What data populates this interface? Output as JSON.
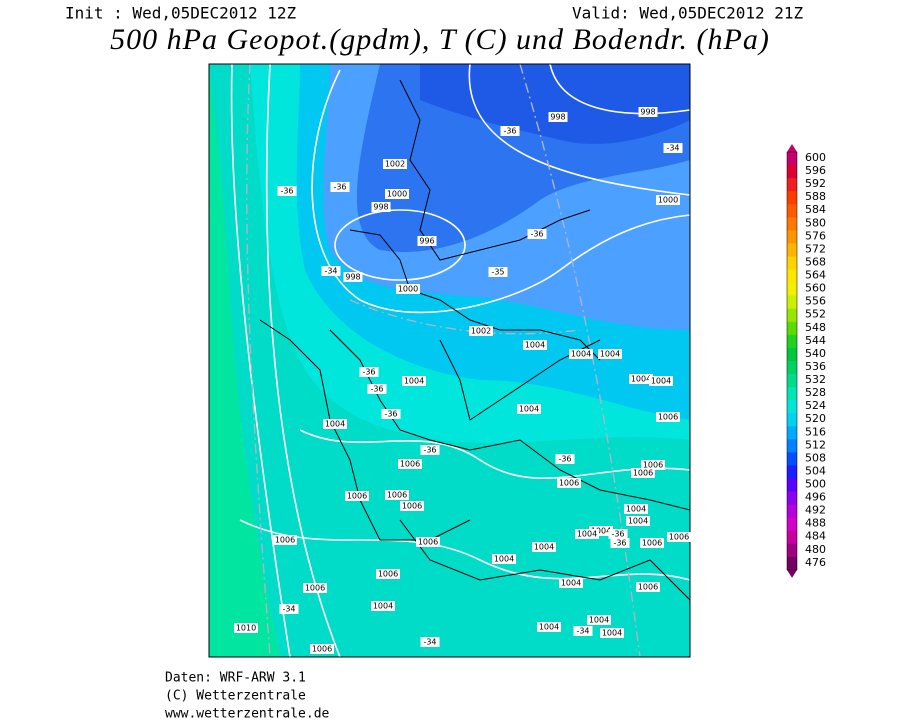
{
  "header": {
    "init": "Init : Wed,05DEC2012 12Z",
    "valid": "Valid: Wed,05DEC2012 21Z",
    "title": "500 hPa Geopot.(gpdm), T (C) und Bodendr. (hPa)"
  },
  "colorbar": {
    "labels": [
      600,
      596,
      592,
      588,
      584,
      580,
      576,
      572,
      568,
      564,
      560,
      556,
      552,
      548,
      544,
      540,
      536,
      532,
      528,
      524,
      520,
      516,
      512,
      508,
      504,
      500,
      496,
      492,
      488,
      484,
      480,
      476
    ],
    "colors": [
      "#c8006e",
      "#dc0032",
      "#f01e1e",
      "#ff3c00",
      "#ff5a00",
      "#ff7800",
      "#ff9600",
      "#ffb400",
      "#ffd200",
      "#ffe600",
      "#f0f000",
      "#c8f000",
      "#96e600",
      "#5adc00",
      "#1ed21e",
      "#00c83c",
      "#00d264",
      "#00dc8c",
      "#00e6b4",
      "#00e6dc",
      "#00d2f0",
      "#00aaff",
      "#0082ff",
      "#0050ff",
      "#1e1eff",
      "#5a00ff",
      "#8c00f0",
      "#b400dc",
      "#d200c8",
      "#c800a0",
      "#a00082",
      "#780064"
    ]
  },
  "map_labels": [
    "998",
    "998",
    "-36",
    "-34",
    "1002",
    "-36",
    "-36",
    "1000",
    "998",
    "1000",
    "996",
    "-36",
    "-34",
    "998",
    "-35",
    "1000",
    "1002",
    "1004",
    "1004",
    "1004",
    "-36",
    "-36",
    "1004",
    "1004",
    "1004",
    "-36",
    "1004",
    "1006",
    "1004",
    "-36",
    "1006",
    "-36",
    "1006",
    "1006",
    "1006",
    "1006",
    "1006",
    "1006",
    "1004",
    "1004",
    "1006",
    "1004",
    "1004",
    "1006",
    "1006",
    "1006",
    "1004",
    "-36",
    "-36",
    "1004",
    "1006",
    "1006",
    "1004",
    "1006",
    "-34",
    "1004",
    "1010",
    "1004",
    "1004",
    "-34",
    "1004",
    "-34",
    "1006"
  ],
  "footer": [
    "Daten: WRF-ARW 3.1",
    "(C) Wetterzentrale",
    "www.wetterzentrale.de"
  ]
}
